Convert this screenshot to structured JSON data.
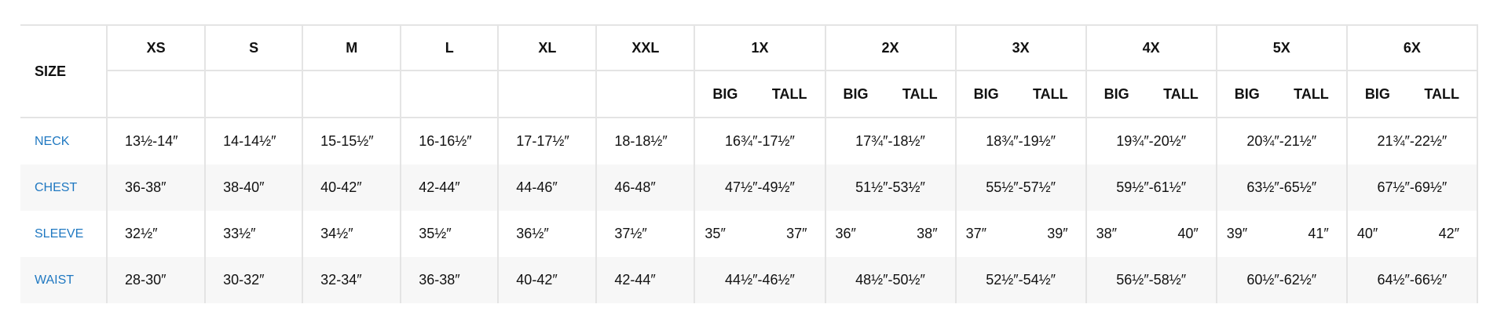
{
  "header": {
    "size_label": "SIZE",
    "sizes": [
      "XS",
      "S",
      "M",
      "L",
      "XL",
      "XXL",
      "1X",
      "2X",
      "3X",
      "4X",
      "5X",
      "6X"
    ],
    "big_label": "BIG",
    "tall_label": "TALL"
  },
  "rows": [
    {
      "label": "NECK",
      "values": [
        "13½-14″",
        "14-14½″",
        "15-15½″",
        "16-16½″",
        "17-17½″",
        "18-18½″",
        "16¾″-17½″",
        "17¾″-18½″",
        "18¾″-19½″",
        "19¾″-20½″",
        "20¾″-21½″",
        "21¾″-22½″"
      ]
    },
    {
      "label": "CHEST",
      "values": [
        "36-38″",
        "38-40″",
        "40-42″",
        "42-44″",
        "44-46″",
        "46-48″",
        "47½″-49½″",
        "51½″-53½″",
        "55½″-57½″",
        "59½″-61½″",
        "63½″-65½″",
        "67½″-69½″"
      ]
    },
    {
      "label": "SLEEVE",
      "values": [
        "32½″",
        "33½″",
        "34½″",
        "35½″",
        "36½″",
        "37½″"
      ],
      "big_tall": [
        [
          "35″",
          "37″"
        ],
        [
          "36″",
          "38″"
        ],
        [
          "37″",
          "39″"
        ],
        [
          "38″",
          "40″"
        ],
        [
          "39″",
          "41″"
        ],
        [
          "40″",
          "42″"
        ]
      ]
    },
    {
      "label": "WAIST",
      "values": [
        "28-30″",
        "30-32″",
        "32-34″",
        "36-38″",
        "40-42″",
        "42-44″",
        "44½″-46½″",
        "48½″-50½″",
        "52½″-54½″",
        "56½″-58½″",
        "60½″-62½″",
        "64½″-66½″"
      ]
    }
  ],
  "colors": {
    "label": "#1f78c1",
    "border": "#e4e4e4",
    "stripe": "#f7f7f7"
  }
}
